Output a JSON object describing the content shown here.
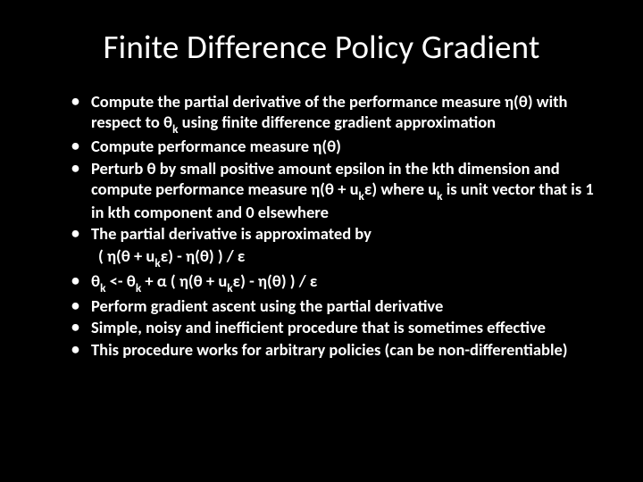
{
  "slide": {
    "background_color": "#000000",
    "text_color": "#ffffff",
    "title_fontsize": 37,
    "body_fontsize": 18.5,
    "title": "Finite Difference Policy Gradient",
    "bullets": {
      "b1": "Compute the partial derivative of the performance measure η(θ) with respect to θ",
      "b1_sub": "k",
      "b1_tail": " using finite difference gradient approximation",
      "b2": "Compute performance measure η(θ)",
      "b3a": "Perturb θ by small positive amount epsilon in the kth dimension and compute performance measure η(θ + u",
      "b3_sub1": "k",
      "b3b": "ε) where u",
      "b3_sub2": "k",
      "b3c": " is unit vector that is 1 in kth component and 0 elsewhere",
      "b4": "The partial derivative is approximated by",
      "b4_formula_a": " ( η(θ + u",
      "b4_sub": "k",
      "b4_formula_b": "ε)  - η(θ) ) / ε",
      "b5a": "θ",
      "b5_sub1": "k",
      "b5b": " <- θ",
      "b5_sub2": "k",
      "b5c": " + α ( η(θ + u",
      "b5_sub3": "k",
      "b5d": "ε)  - η(θ) ) / ε",
      "b6": "Perform gradient ascent using the partial derivative",
      "b7": "Simple, noisy and inefficient procedure that is sometimes effective",
      "b8": "This procedure works for arbitrary policies (can be non-differentiable)"
    }
  }
}
